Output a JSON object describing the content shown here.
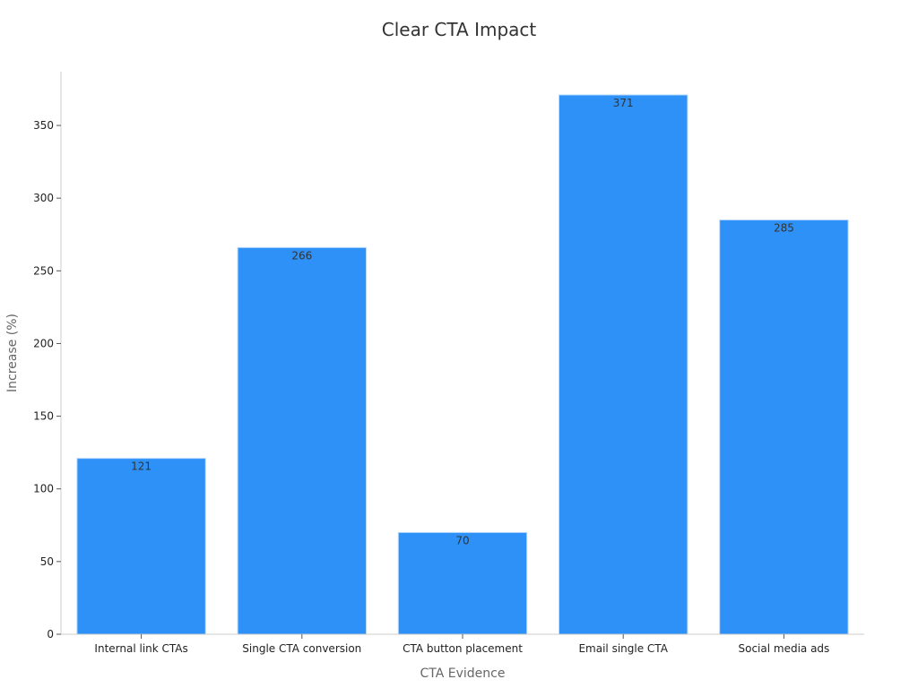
{
  "chart_data": {
    "type": "bar",
    "title": "Clear CTA Impact",
    "xlabel": "CTA Evidence",
    "ylabel": "Increase (%)",
    "categories": [
      "Internal link CTAs",
      "Single CTA conversion",
      "CTA button placement",
      "Email single CTA",
      "Social media ads"
    ],
    "values": [
      121,
      266,
      70,
      371,
      285
    ],
    "ylim": [
      0,
      387
    ],
    "yticks": [
      0,
      50,
      100,
      150,
      200,
      250,
      300,
      350
    ],
    "grid": false,
    "legend": "none",
    "colors": {
      "bar": "#2E91F7",
      "bar_edge": "#B8D8FB",
      "axis": "#CCCCCC"
    }
  }
}
